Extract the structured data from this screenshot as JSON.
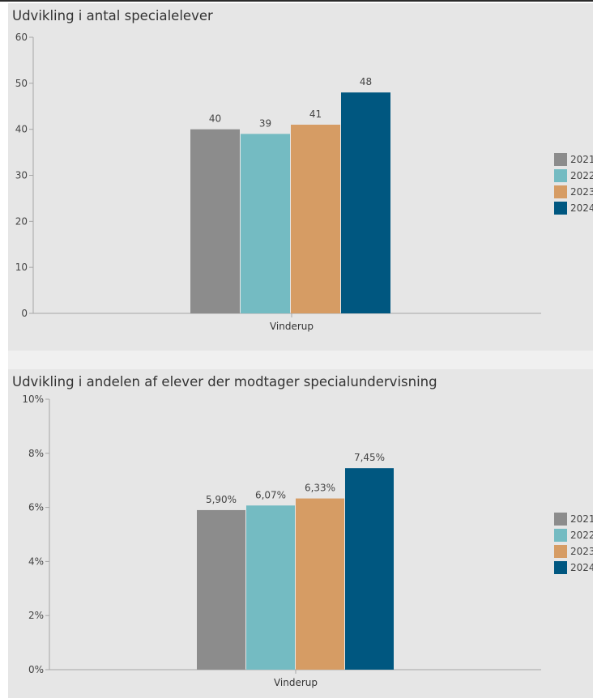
{
  "colors": {
    "background": "#e6e6e6",
    "axis": "#a6a6a6",
    "text": "#333333",
    "series": [
      "#8c8c8c",
      "#74bbc2",
      "#d69c64",
      "#005780"
    ]
  },
  "chart_data": [
    {
      "type": "bar",
      "title": "Udvikling i antal specialelever",
      "categories": [
        "Vinderup"
      ],
      "series": [
        {
          "name": "2021",
          "values": [
            40
          ]
        },
        {
          "name": "2022",
          "values": [
            39
          ]
        },
        {
          "name": "2023",
          "values": [
            41
          ]
        },
        {
          "name": "2024",
          "values": [
            48
          ]
        }
      ],
      "data_labels": [
        "40",
        "39",
        "41",
        "48"
      ],
      "yticks": [
        "0",
        "10",
        "20",
        "30",
        "40",
        "50",
        "60"
      ],
      "ylim": [
        0,
        60
      ],
      "xlabel": "",
      "ylabel": "",
      "grid": false,
      "legend": "right"
    },
    {
      "type": "bar",
      "title": "Udvikling i andelen af elever der modtager specialundervisning",
      "categories": [
        "Vinderup"
      ],
      "series": [
        {
          "name": "2021",
          "values": [
            5.9
          ]
        },
        {
          "name": "2022",
          "values": [
            6.07
          ]
        },
        {
          "name": "2023",
          "values": [
            6.33
          ]
        },
        {
          "name": "2024",
          "values": [
            7.45
          ]
        }
      ],
      "data_labels": [
        "5,90%",
        "6,07%",
        "6,33%",
        "7,45%"
      ],
      "yticks": [
        "0%",
        "2%",
        "4%",
        "6%",
        "8%",
        "10%"
      ],
      "ylim": [
        0,
        10
      ],
      "xlabel": "",
      "ylabel": "",
      "grid": false,
      "legend": "right"
    }
  ]
}
